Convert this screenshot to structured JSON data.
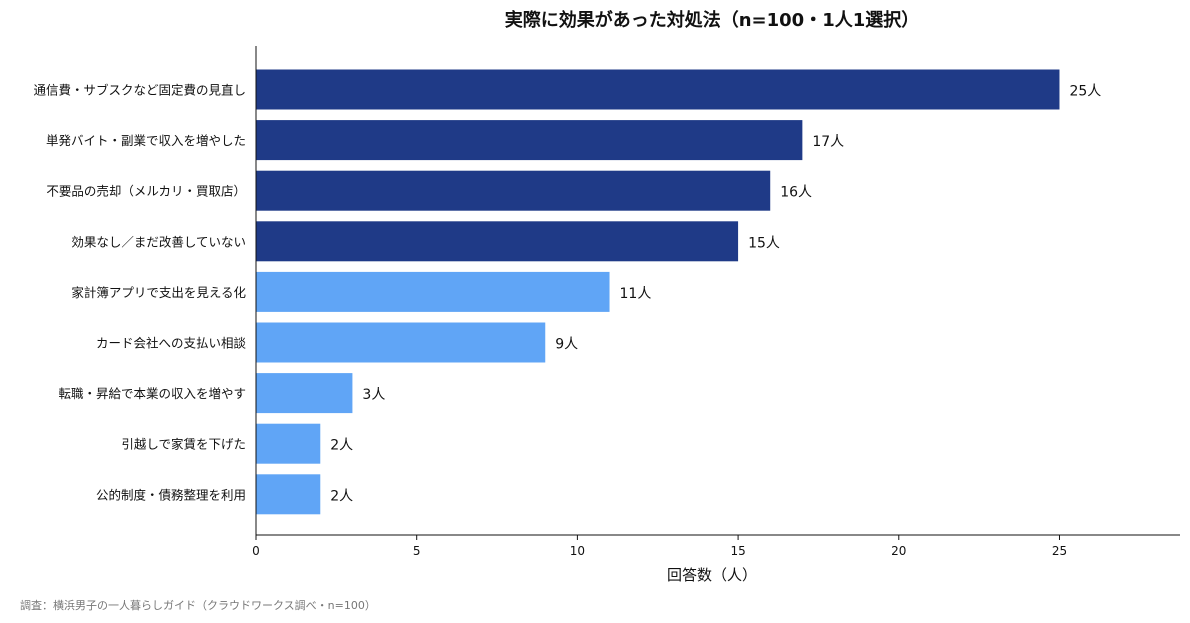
{
  "chart_data": {
    "type": "bar",
    "orientation": "horizontal",
    "title": "実際に効果があった対処法（n=100・1人1選択）",
    "xlabel": "回答数（人）",
    "ylabel": "",
    "xlim": [
      0,
      28.75
    ],
    "xticks": [
      0,
      5,
      10,
      15,
      20,
      25
    ],
    "grid": false,
    "legend": "none",
    "categories": [
      "通信費・サブスクなど固定費の見直し",
      "単発バイト・副業で収入を増やした",
      "不要品の売却（メルカリ・買取店）",
      "効果なし／まだ改善していない",
      "家計簿アプリで支出を見える化",
      "カード会社への支払い相談",
      "転職・昇給で本業の収入を増やす",
      "引越しで家賃を下げた",
      "公的制度・債務整理を利用"
    ],
    "values": [
      25,
      17,
      16,
      15,
      11,
      9,
      3,
      2,
      2
    ],
    "data_labels": [
      "25人",
      "17人",
      "16人",
      "15人",
      "11人",
      "9人",
      "3人",
      "2人",
      "2人"
    ],
    "colors": {
      "top4": "#1f3a87",
      "rest": "#60a5f6"
    }
  },
  "source": "調査：横浜男子の一人暮らしガイド（クラウドワークス調べ・n=100）"
}
